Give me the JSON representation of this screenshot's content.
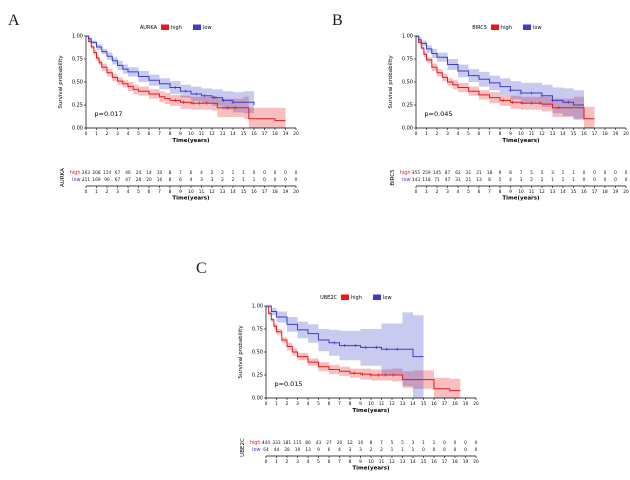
{
  "figure_bg": "#ffffff",
  "chart_data": [
    {
      "type": "line",
      "subtype": "kaplan-meier-survival",
      "panel_label": "A",
      "title": "AURKA",
      "p_value": "p=0.017",
      "xlabel": "Time(years)",
      "ylabel": "Survival probability",
      "xlim": [
        0,
        20
      ],
      "ylim": [
        0,
        1
      ],
      "xticks": [
        0,
        1,
        2,
        3,
        4,
        5,
        6,
        7,
        8,
        9,
        10,
        11,
        12,
        13,
        14,
        15,
        16,
        17,
        18,
        19,
        20
      ],
      "yticks": [
        0,
        0.25,
        0.5,
        0.75,
        1
      ],
      "legend_position": "top",
      "series": [
        {
          "name": "high",
          "color": "#E41A1C",
          "t": [
            0,
            0.25,
            0.5,
            0.75,
            1,
            1.25,
            1.5,
            2,
            2.5,
            3,
            3.5,
            4,
            4.5,
            5,
            6,
            7,
            7.5,
            8,
            9,
            10,
            12,
            12.5,
            15,
            15.5,
            18,
            19
          ],
          "s": [
            1,
            0.94,
            0.88,
            0.82,
            0.76,
            0.71,
            0.66,
            0.6,
            0.55,
            0.51,
            0.48,
            0.45,
            0.42,
            0.4,
            0.37,
            0.34,
            0.32,
            0.3,
            0.28,
            0.27,
            0.27,
            0.22,
            0.22,
            0.1,
            0.08,
            0.08
          ],
          "w": [
            0.01,
            0.02,
            0.02,
            0.03,
            0.03,
            0.03,
            0.04,
            0.04,
            0.04,
            0.04,
            0.04,
            0.05,
            0.05,
            0.05,
            0.05,
            0.06,
            0.06,
            0.06,
            0.07,
            0.07,
            0.08,
            0.1,
            0.12,
            0.12,
            0.14,
            0.14
          ],
          "censor_t": [
            8.5,
            9.3,
            10.2,
            10.8,
            11.5,
            13.5,
            14.2
          ]
        },
        {
          "name": "low",
          "color": "#3C3FC6",
          "t": [
            0,
            0.25,
            0.5,
            1,
            1.5,
            2,
            2.5,
            3,
            3.5,
            4,
            5,
            6,
            7,
            8,
            9,
            10,
            11,
            12,
            13,
            14,
            15,
            16
          ],
          "s": [
            1,
            0.97,
            0.93,
            0.88,
            0.83,
            0.78,
            0.73,
            0.68,
            0.64,
            0.61,
            0.56,
            0.52,
            0.48,
            0.44,
            0.4,
            0.37,
            0.35,
            0.33,
            0.3,
            0.28,
            0.28,
            0.25
          ],
          "w": [
            0.01,
            0.02,
            0.02,
            0.03,
            0.03,
            0.04,
            0.04,
            0.05,
            0.05,
            0.05,
            0.06,
            0.06,
            0.06,
            0.07,
            0.07,
            0.08,
            0.08,
            0.09,
            0.1,
            0.11,
            0.12,
            0.13
          ],
          "censor_t": [
            8.5,
            9.5,
            10.5,
            11.3,
            12.2,
            13.1,
            14
          ]
        }
      ],
      "risk_table": {
        "row_label": "AURKA",
        "rows": [
          {
            "name": "high",
            "color": "#E41A1C",
            "counts": [
              263,
              208,
              114,
              67,
              46,
              24,
              14,
              10,
              8,
              7,
              6,
              4,
              2,
              2,
              1,
              1,
              0,
              0,
              0,
              0,
              0
            ]
          },
          {
            "name": "low",
            "color": "#3C3FC6",
            "counts": [
              211,
              169,
              90,
              67,
              47,
              28,
              20,
              16,
              8,
              6,
              4,
              3,
              3,
              2,
              2,
              1,
              1,
              0,
              0,
              0,
              0
            ]
          }
        ]
      }
    },
    {
      "type": "line",
      "subtype": "kaplan-meier-survival",
      "panel_label": "B",
      "title": "BIRC5",
      "p_value": "p=0.045",
      "xlabel": "Time(years)",
      "ylabel": "Survival probability",
      "xlim": [
        0,
        20
      ],
      "ylim": [
        0,
        1
      ],
      "xticks": [
        0,
        1,
        2,
        3,
        4,
        5,
        6,
        7,
        8,
        9,
        10,
        11,
        12,
        13,
        14,
        15,
        16,
        17,
        18,
        19,
        20
      ],
      "yticks": [
        0,
        0.25,
        0.5,
        0.75,
        1
      ],
      "legend_position": "top",
      "series": [
        {
          "name": "high",
          "color": "#E41A1C",
          "t": [
            0,
            0.25,
            0.5,
            0.75,
            1,
            1.5,
            2,
            2.5,
            3,
            3.5,
            4,
            5,
            6,
            7,
            8,
            9,
            10,
            12,
            13,
            15,
            16,
            17
          ],
          "s": [
            1,
            0.93,
            0.87,
            0.8,
            0.74,
            0.66,
            0.6,
            0.55,
            0.5,
            0.47,
            0.44,
            0.4,
            0.36,
            0.33,
            0.3,
            0.28,
            0.27,
            0.26,
            0.22,
            0.22,
            0.1,
            0.1
          ],
          "w": [
            0.01,
            0.02,
            0.02,
            0.03,
            0.03,
            0.04,
            0.04,
            0.04,
            0.04,
            0.05,
            0.05,
            0.05,
            0.05,
            0.06,
            0.06,
            0.07,
            0.07,
            0.08,
            0.1,
            0.12,
            0.13,
            0.13
          ],
          "censor_t": [
            8.3,
            9.2,
            10.1,
            11,
            11.8,
            13.6
          ]
        },
        {
          "name": "low",
          "color": "#3C3FC6",
          "t": [
            0,
            0.25,
            0.5,
            1,
            1.5,
            2,
            3,
            4,
            5,
            6,
            7,
            8,
            9,
            10,
            12,
            13,
            14,
            15,
            16
          ],
          "s": [
            1,
            0.96,
            0.92,
            0.86,
            0.81,
            0.77,
            0.69,
            0.62,
            0.57,
            0.53,
            0.49,
            0.45,
            0.41,
            0.38,
            0.35,
            0.3,
            0.28,
            0.25,
            0.25
          ],
          "w": [
            0.02,
            0.03,
            0.03,
            0.04,
            0.05,
            0.05,
            0.06,
            0.07,
            0.07,
            0.08,
            0.08,
            0.09,
            0.1,
            0.11,
            0.12,
            0.14,
            0.15,
            0.16,
            0.16
          ],
          "censor_t": [
            9,
            10,
            11,
            12,
            13,
            14.5
          ]
        }
      ],
      "risk_table": {
        "row_label": "BIRC5",
        "rows": [
          {
            "name": "high",
            "color": "#E41A1C",
            "counts": [
              355,
              259,
              145,
              87,
              62,
              31,
              21,
              18,
              9,
              8,
              7,
              5,
              5,
              3,
              1,
              1,
              0,
              0,
              0,
              0,
              0
            ]
          },
          {
            "name": "low",
            "color": "#3C3FC6",
            "counts": [
              143,
              118,
              71,
              47,
              31,
              21,
              13,
              8,
              5,
              4,
              3,
              2,
              2,
              1,
              1,
              1,
              0,
              0,
              0,
              0,
              0
            ]
          }
        ]
      }
    },
    {
      "type": "line",
      "subtype": "kaplan-meier-survival",
      "panel_label": "C",
      "title": "UBE2C",
      "p_value": "p=0.015",
      "xlabel": "Time(years)",
      "ylabel": "Survival probability",
      "xlim": [
        0,
        20
      ],
      "ylim": [
        0,
        1
      ],
      "xticks": [
        0,
        1,
        2,
        3,
        4,
        5,
        6,
        7,
        8,
        9,
        10,
        11,
        12,
        13,
        14,
        15,
        16,
        17,
        18,
        19,
        20
      ],
      "yticks": [
        0,
        0.25,
        0.5,
        0.75,
        1
      ],
      "legend_position": "top",
      "series": [
        {
          "name": "high",
          "color": "#E41A1C",
          "t": [
            0,
            0.25,
            0.5,
            0.75,
            1,
            1.5,
            2,
            2.5,
            3,
            4,
            5,
            6,
            7,
            8,
            9,
            10,
            12,
            13,
            14,
            16,
            17.5,
            18.5
          ],
          "s": [
            1,
            0.92,
            0.85,
            0.78,
            0.72,
            0.63,
            0.56,
            0.5,
            0.45,
            0.39,
            0.34,
            0.31,
            0.29,
            0.27,
            0.26,
            0.25,
            0.25,
            0.2,
            0.2,
            0.1,
            0.08,
            0.08
          ],
          "w": [
            0.01,
            0.02,
            0.02,
            0.03,
            0.03,
            0.03,
            0.04,
            0.04,
            0.04,
            0.04,
            0.05,
            0.05,
            0.05,
            0.05,
            0.06,
            0.06,
            0.07,
            0.09,
            0.1,
            0.12,
            0.13,
            0.13
          ],
          "censor_t": [
            8.4,
            9.2,
            10,
            10.7,
            11.4,
            12.1
          ]
        },
        {
          "name": "low",
          "color": "#3C3FC6",
          "t": [
            0,
            0.5,
            1,
            2,
            3,
            4,
            5,
            6,
            7,
            9,
            11,
            13,
            14,
            15
          ],
          "s": [
            1,
            0.94,
            0.88,
            0.8,
            0.74,
            0.7,
            0.63,
            0.6,
            0.57,
            0.55,
            0.53,
            0.53,
            0.45,
            0.45
          ],
          "w": [
            0.02,
            0.04,
            0.06,
            0.08,
            0.09,
            0.1,
            0.12,
            0.14,
            0.16,
            0.2,
            0.28,
            0.4,
            0.45,
            0.45
          ],
          "censor_t": [
            6.5,
            7.5,
            8.5,
            9.5,
            10.5,
            11.5,
            12.5
          ]
        }
      ],
      "risk_table": {
        "row_label": "UBE2C",
        "rows": [
          {
            "name": "high",
            "color": "#E41A1C",
            "counts": [
              444,
              333,
              181,
              115,
              80,
              43,
              27,
              20,
              12,
              10,
              8,
              7,
              5,
              5,
              3,
              1,
              1,
              0,
              0,
              0,
              0
            ]
          },
          {
            "name": "low",
            "color": "#3C3FC6",
            "counts": [
              54,
              44,
              28,
              19,
              13,
              9,
              6,
              4,
              3,
              3,
              2,
              2,
              1,
              1,
              1,
              0,
              0,
              0,
              0,
              0,
              0
            ]
          }
        ]
      }
    }
  ]
}
